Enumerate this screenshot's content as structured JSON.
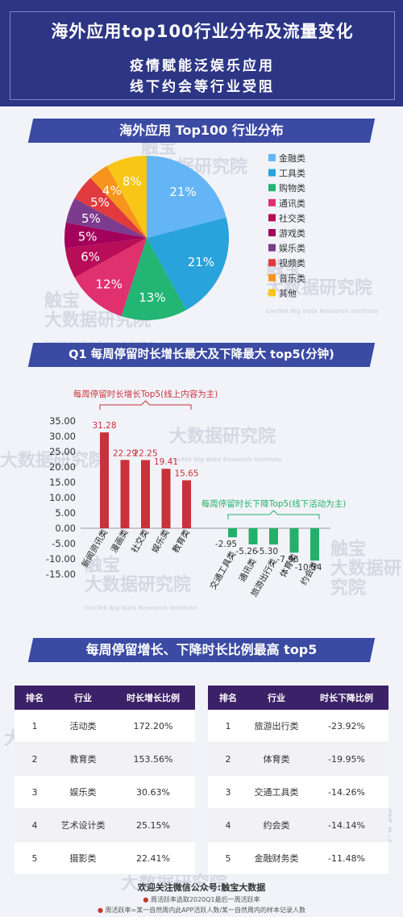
{
  "header": {
    "title": "海外应用top100行业分布及流量变化",
    "subtitle1": "疫情赋能泛娱乐应用",
    "subtitle2": "线下约会等行业受阻"
  },
  "watermark": {
    "cn1": "触宝",
    "cn2": "大数据研究院",
    "en": "CooTek Big Data Research Institute"
  },
  "section1_title": "海外应用 Top100 行业分布",
  "section2_title": "Q1 每周停留时长增长最大及下降最大 top5(分钟)",
  "section3_title": "每周停留增长、下降时长比例最高 top5",
  "chart_data": [
    {
      "type": "pie",
      "title": "海外应用 Top100 行业分布",
      "labels": [
        "金融类",
        "工具类",
        "购物类",
        "通讯类",
        "社交类",
        "游戏类",
        "娱乐类",
        "视频类",
        "音乐类",
        "其他"
      ],
      "values": [
        21,
        21,
        13,
        12,
        6,
        5,
        5,
        5,
        4,
        8
      ],
      "value_labels": [
        "21%",
        "21%",
        "13%",
        "12%",
        "6%",
        "5%",
        "5%",
        "5%",
        "4%",
        "8%"
      ],
      "colors": [
        "#64b5f6",
        "#29a3dc",
        "#22b573",
        "#e0306e",
        "#b80d57",
        "#a3005c",
        "#7c3b8e",
        "#e03a3e",
        "#f7941d",
        "#f7c617"
      ],
      "legend": "right"
    },
    {
      "type": "bar",
      "title": "Q1 每周停留时长增长最大及下降最大 top5(分钟)",
      "ylim": [
        -15,
        35
      ],
      "yticks": [
        "35.00",
        "30.00",
        "25.00",
        "20.00",
        "15.00",
        "10.00",
        "5.00",
        "0.00",
        "-5.00",
        "-10.00",
        "-15.00"
      ],
      "grid": false,
      "groups": [
        {
          "name": "每周停留时长增长Top5(线上内容为主)",
          "color": "#c8323a",
          "categories": [
            "新闻资讯类",
            "漫画类",
            "社交类",
            "娱乐类",
            "教育类"
          ],
          "values": [
            31.28,
            22.29,
            22.25,
            19.41,
            15.65
          ],
          "value_labels": [
            "31.28",
            "22.29",
            "22.25",
            "19.41",
            "15.65"
          ]
        },
        {
          "name": "每周停留时长下降Top5(线下活动为主)",
          "color": "#23b06b",
          "categories": [
            "交通工具类",
            "通讯类",
            "旅游出行类",
            "体育类",
            "约会类"
          ],
          "values": [
            -2.95,
            -5.26,
            -5.3,
            -7.96,
            -10.54
          ],
          "value_labels": [
            "-2.95",
            "-5.26",
            "-5.30",
            "-7.96",
            "-10.54"
          ]
        }
      ]
    },
    {
      "type": "table",
      "columns": [
        "排名",
        "行业",
        "时长增长比例"
      ],
      "rows": [
        [
          "1",
          "活动类",
          "172.20%"
        ],
        [
          "2",
          "教育类",
          "153.56%"
        ],
        [
          "3",
          "娱乐类",
          "30.63%"
        ],
        [
          "4",
          "艺术设计类",
          "25.15%"
        ],
        [
          "5",
          "摄影类",
          "22.41%"
        ]
      ]
    },
    {
      "type": "table",
      "columns": [
        "排名",
        "行业",
        "时长下降比例"
      ],
      "rows": [
        [
          "1",
          "旅游出行类",
          "-23.92%"
        ],
        [
          "2",
          "体育类",
          "-19.95%"
        ],
        [
          "3",
          "交通工具类",
          "-14.26%"
        ],
        [
          "4",
          "约会类",
          "-14.14%"
        ],
        [
          "5",
          "金融财务类",
          "-11.48%"
        ]
      ]
    }
  ],
  "footer": {
    "line1": "欢迎关注微信公众号:触宝大数据",
    "line2": "周活跃率选取2020Q1最后一周活跃率",
    "line3": "周活跃率=某一自然周内此APP活跃人数/某一自然周内的样本记录人数"
  }
}
